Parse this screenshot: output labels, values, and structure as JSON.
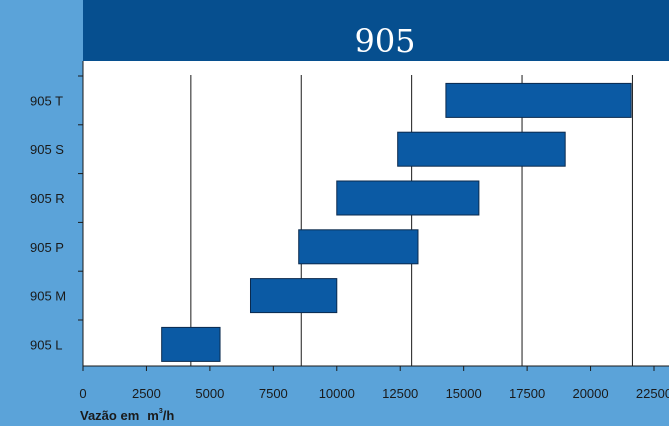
{
  "colors": {
    "page_background": "#5ba3d9",
    "title_bar": "#064f8f",
    "bar_fill": "#0b5aa4",
    "bar_stroke": "#0a2a4e",
    "plot_background": "#ffffff",
    "grid_line": "#1a1a1a"
  },
  "chart_data": {
    "type": "gantt-range-bar",
    "title": "905",
    "xlabel": "Vazão em",
    "xlabel_unit": "m",
    "xlabel_unit_sup": "3",
    "xlabel_unit_suffix": "/h",
    "xlim": [
      0,
      23000
    ],
    "xticks": [
      0,
      2500,
      5000,
      7500,
      10000,
      12500,
      15000,
      17500,
      20000,
      22500
    ],
    "xtick_labels": [
      "0",
      "2500",
      "5000",
      "7500",
      "10000",
      "12500",
      "15000",
      "17500",
      "20000",
      "22500"
    ],
    "vertical_lines": [
      4250,
      8600,
      12950,
      17300,
      21650
    ],
    "grid": false,
    "categories": [
      "905 T",
      "905 S",
      "905 R",
      "905 P",
      "905 M",
      "905 L"
    ],
    "ranges": [
      {
        "label": "905 T",
        "start": 14300,
        "end": 21600
      },
      {
        "label": "905 S",
        "start": 12400,
        "end": 19000
      },
      {
        "label": "905 R",
        "start": 10000,
        "end": 15600
      },
      {
        "label": "905 P",
        "start": 8500,
        "end": 13200
      },
      {
        "label": "905 M",
        "start": 6600,
        "end": 10000
      },
      {
        "label": "905 L",
        "start": 3100,
        "end": 5400
      }
    ]
  }
}
